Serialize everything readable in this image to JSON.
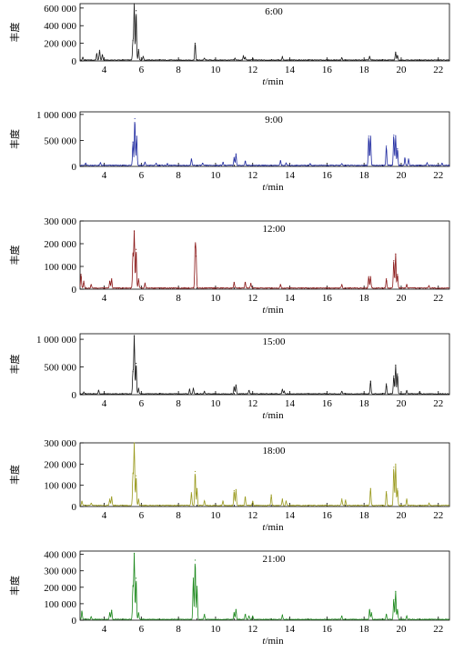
{
  "chart_data": [
    {
      "type": "line",
      "title": "6:00",
      "ylabel": "丰度",
      "xlabel_italic": "t",
      "xlabel_unit": "/min",
      "xlim": [
        2.7,
        22.6
      ],
      "xticks": [
        4,
        6,
        8,
        10,
        12,
        14,
        16,
        18,
        20,
        22
      ],
      "ylim": [
        0,
        650000
      ],
      "yticks": [
        0,
        200000,
        400000,
        600000
      ],
      "ytick_labels": [
        "0",
        "200 000",
        "400 000",
        "600 000"
      ],
      "color": "#1a1a1a",
      "baseline": 10000,
      "peaks": [
        [
          2.85,
          30000
        ],
        [
          3.6,
          70000
        ],
        [
          3.75,
          110000
        ],
        [
          3.9,
          60000
        ],
        [
          5.55,
          220000
        ],
        [
          5.62,
          640000
        ],
        [
          5.72,
          560000
        ],
        [
          5.85,
          120000
        ],
        [
          6.1,
          40000
        ],
        [
          8.9,
          190000
        ],
        [
          9.4,
          20000
        ],
        [
          11.05,
          20000
        ],
        [
          11.5,
          45000
        ],
        [
          11.6,
          30000
        ],
        [
          12.0,
          20000
        ],
        [
          13.6,
          35000
        ],
        [
          16.8,
          25000
        ],
        [
          18.3,
          40000
        ],
        [
          19.7,
          90000
        ],
        [
          19.8,
          50000
        ]
      ]
    },
    {
      "type": "line",
      "title": "9:00",
      "ylabel": "丰度",
      "xlabel_italic": "t",
      "xlabel_unit": "/min",
      "xlim": [
        2.7,
        22.6
      ],
      "xticks": [
        4,
        6,
        8,
        10,
        12,
        14,
        16,
        18,
        20,
        22
      ],
      "ylim": [
        0,
        1050000
      ],
      "yticks": [
        0,
        500000,
        1000000
      ],
      "ytick_labels": [
        "0",
        "500 000",
        "1 000 000"
      ],
      "color": "#1f2aa0",
      "baseline": 20000,
      "peaks": [
        [
          3.0,
          40000
        ],
        [
          3.8,
          50000
        ],
        [
          5.55,
          450000
        ],
        [
          5.65,
          900000
        ],
        [
          5.75,
          560000
        ],
        [
          6.2,
          60000
        ],
        [
          6.8,
          40000
        ],
        [
          7.4,
          30000
        ],
        [
          8.7,
          120000
        ],
        [
          9.3,
          40000
        ],
        [
          10.4,
          60000
        ],
        [
          11.0,
          150000
        ],
        [
          11.1,
          220000
        ],
        [
          11.6,
          80000
        ],
        [
          13.5,
          90000
        ],
        [
          13.8,
          40000
        ],
        [
          15.1,
          30000
        ],
        [
          16.8,
          30000
        ],
        [
          18.25,
          560000
        ],
        [
          18.35,
          560000
        ],
        [
          19.2,
          370000
        ],
        [
          19.6,
          580000
        ],
        [
          19.7,
          570000
        ],
        [
          19.8,
          320000
        ],
        [
          20.2,
          140000
        ],
        [
          20.4,
          120000
        ],
        [
          21.4,
          50000
        ],
        [
          22.2,
          40000
        ]
      ]
    },
    {
      "type": "line",
      "title": "12:00",
      "ylabel": "丰度",
      "xlabel_italic": "t",
      "xlabel_unit": "/min",
      "xlim": [
        2.7,
        22.6
      ],
      "xticks": [
        4,
        6,
        8,
        10,
        12,
        14,
        16,
        18,
        20,
        22
      ],
      "ylim": [
        0,
        300000
      ],
      "yticks": [
        0,
        100000,
        200000,
        300000
      ],
      "ytick_labels": [
        "0",
        "100 000",
        "200 000",
        "300 000"
      ],
      "color": "#8b1a1a",
      "baseline": 5000,
      "peaks": [
        [
          2.75,
          60000
        ],
        [
          2.9,
          30000
        ],
        [
          3.3,
          15000
        ],
        [
          4.3,
          30000
        ],
        [
          4.4,
          40000
        ],
        [
          5.55,
          150000
        ],
        [
          5.62,
          250000
        ],
        [
          5.72,
          170000
        ],
        [
          5.85,
          40000
        ],
        [
          6.2,
          20000
        ],
        [
          8.9,
          180000
        ],
        [
          8.95,
          140000
        ],
        [
          11.0,
          25000
        ],
        [
          11.6,
          25000
        ],
        [
          11.9,
          20000
        ],
        [
          13.5,
          15000
        ],
        [
          16.8,
          15000
        ],
        [
          18.25,
          50000
        ],
        [
          18.35,
          50000
        ],
        [
          19.2,
          40000
        ],
        [
          19.6,
          120000
        ],
        [
          19.7,
          150000
        ],
        [
          19.8,
          60000
        ],
        [
          20.3,
          15000
        ],
        [
          21.5,
          10000
        ]
      ]
    },
    {
      "type": "line",
      "title": "15:00",
      "ylabel": "丰度",
      "xlabel_italic": "t",
      "xlabel_unit": "/min",
      "xlim": [
        2.7,
        22.6
      ],
      "xticks": [
        4,
        6,
        8,
        10,
        12,
        14,
        16,
        18,
        20,
        22
      ],
      "ylim": [
        0,
        1100000
      ],
      "yticks": [
        0,
        500000,
        1000000
      ],
      "ytick_labels": [
        "0",
        "500 000",
        "1 000 000"
      ],
      "color": "#1a1a1a",
      "baseline": 15000,
      "peaks": [
        [
          2.9,
          30000
        ],
        [
          3.7,
          60000
        ],
        [
          5.55,
          400000
        ],
        [
          5.62,
          1050000
        ],
        [
          5.72,
          550000
        ],
        [
          5.85,
          100000
        ],
        [
          8.6,
          80000
        ],
        [
          8.8,
          100000
        ],
        [
          9.4,
          40000
        ],
        [
          11.0,
          120000
        ],
        [
          11.1,
          160000
        ],
        [
          11.8,
          60000
        ],
        [
          13.6,
          80000
        ],
        [
          13.7,
          50000
        ],
        [
          16.8,
          40000
        ],
        [
          18.35,
          230000
        ],
        [
          19.2,
          180000
        ],
        [
          19.6,
          320000
        ],
        [
          19.7,
          520000
        ],
        [
          19.8,
          360000
        ],
        [
          20.3,
          60000
        ],
        [
          21.0,
          40000
        ]
      ]
    },
    {
      "type": "line",
      "title": "18:00",
      "ylabel": "丰度",
      "xlabel_italic": "t",
      "xlabel_unit": "/min",
      "xlim": [
        2.7,
        22.6
      ],
      "xticks": [
        4,
        6,
        8,
        10,
        12,
        14,
        16,
        18,
        20,
        22
      ],
      "ylim": [
        0,
        300000
      ],
      "yticks": [
        0,
        100000,
        200000,
        300000
      ],
      "ytick_labels": [
        "0",
        "100 000",
        "200 000",
        "300 000"
      ],
      "color": "#9a9a1f",
      "baseline": 5000,
      "peaks": [
        [
          2.8,
          20000
        ],
        [
          3.3,
          10000
        ],
        [
          4.3,
          30000
        ],
        [
          4.4,
          40000
        ],
        [
          5.55,
          150000
        ],
        [
          5.62,
          305000
        ],
        [
          5.72,
          140000
        ],
        [
          5.85,
          30000
        ],
        [
          8.7,
          60000
        ],
        [
          8.9,
          160000
        ],
        [
          9.0,
          80000
        ],
        [
          9.4,
          20000
        ],
        [
          10.4,
          20000
        ],
        [
          11.0,
          70000
        ],
        [
          11.1,
          75000
        ],
        [
          11.6,
          40000
        ],
        [
          12.0,
          20000
        ],
        [
          13.0,
          50000
        ],
        [
          13.6,
          30000
        ],
        [
          13.8,
          20000
        ],
        [
          16.8,
          30000
        ],
        [
          17.0,
          25000
        ],
        [
          18.35,
          80000
        ],
        [
          19.2,
          65000
        ],
        [
          19.6,
          180000
        ],
        [
          19.7,
          195000
        ],
        [
          19.8,
          80000
        ],
        [
          20.3,
          30000
        ],
        [
          21.5,
          10000
        ]
      ]
    },
    {
      "type": "line",
      "title": "21:00",
      "ylabel": "丰度",
      "xlabel_italic": "t",
      "xlabel_unit": "/min",
      "xlim": [
        2.7,
        22.6
      ],
      "xticks": [
        4,
        6,
        8,
        10,
        12,
        14,
        16,
        18,
        20,
        22
      ],
      "ylim": [
        0,
        420000
      ],
      "yticks": [
        0,
        100000,
        200000,
        300000,
        400000
      ],
      "ytick_labels": [
        "0",
        "100 000",
        "200 000",
        "300 000",
        "400 000"
      ],
      "color": "#1f8a1f",
      "baseline": 5000,
      "peaks": [
        [
          2.8,
          50000
        ],
        [
          3.3,
          15000
        ],
        [
          4.3,
          40000
        ],
        [
          4.4,
          55000
        ],
        [
          5.55,
          200000
        ],
        [
          5.62,
          400000
        ],
        [
          5.72,
          250000
        ],
        [
          5.85,
          40000
        ],
        [
          8.8,
          250000
        ],
        [
          8.9,
          360000
        ],
        [
          9.0,
          200000
        ],
        [
          9.4,
          30000
        ],
        [
          11.0,
          40000
        ],
        [
          11.1,
          60000
        ],
        [
          11.6,
          30000
        ],
        [
          11.8,
          20000
        ],
        [
          12.0,
          20000
        ],
        [
          13.6,
          25000
        ],
        [
          16.8,
          20000
        ],
        [
          18.3,
          60000
        ],
        [
          18.4,
          40000
        ],
        [
          19.2,
          30000
        ],
        [
          19.6,
          120000
        ],
        [
          19.7,
          170000
        ],
        [
          19.8,
          60000
        ],
        [
          20.3,
          20000
        ]
      ]
    }
  ]
}
